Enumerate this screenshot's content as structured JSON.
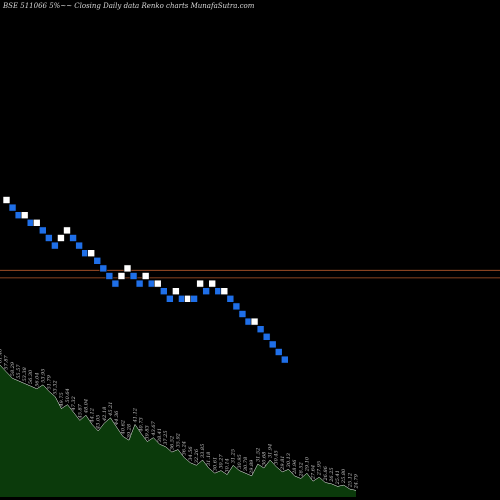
{
  "title": "BSE 511066  5%~~ Closing Daily data  Renko  charts MunafaSutra.com",
  "colors": {
    "background": "#000000",
    "up_brick": "#ffffff",
    "down_brick": "#1f6fe8",
    "brick_border": "#000000",
    "reference_line": "#b5582a",
    "volume_fill": "#0b3a0b",
    "volume_stroke": "#ffffff",
    "label_color": "#c8c8c8"
  },
  "chart_data": {
    "type": "renko",
    "title": "BSE 511066  5%~~ Closing Daily data  Renko  charts MunafaSutra.com",
    "reference_levels": [
      0.75,
      -0.25
    ],
    "bricks": [
      {
        "dir": "up",
        "level": 10
      },
      {
        "dir": "down",
        "level": 9
      },
      {
        "dir": "down",
        "level": 8
      },
      {
        "dir": "up",
        "level": 8
      },
      {
        "dir": "down",
        "level": 7
      },
      {
        "dir": "up",
        "level": 7
      },
      {
        "dir": "down",
        "level": 6
      },
      {
        "dir": "down",
        "level": 5
      },
      {
        "dir": "down",
        "level": 4
      },
      {
        "dir": "up",
        "level": 5
      },
      {
        "dir": "up",
        "level": 6
      },
      {
        "dir": "down",
        "level": 5
      },
      {
        "dir": "down",
        "level": 4
      },
      {
        "dir": "down",
        "level": 3
      },
      {
        "dir": "up",
        "level": 3
      },
      {
        "dir": "down",
        "level": 2
      },
      {
        "dir": "down",
        "level": 1
      },
      {
        "dir": "down",
        "level": 0
      },
      {
        "dir": "down",
        "level": -1
      },
      {
        "dir": "up",
        "level": 0
      },
      {
        "dir": "up",
        "level": 1
      },
      {
        "dir": "down",
        "level": 0
      },
      {
        "dir": "down",
        "level": -1
      },
      {
        "dir": "up",
        "level": 0
      },
      {
        "dir": "down",
        "level": -1
      },
      {
        "dir": "up",
        "level": -1
      },
      {
        "dir": "down",
        "level": -2
      },
      {
        "dir": "down",
        "level": -3
      },
      {
        "dir": "up",
        "level": -2
      },
      {
        "dir": "down",
        "level": -3
      },
      {
        "dir": "up",
        "level": -3
      },
      {
        "dir": "down",
        "level": -3
      },
      {
        "dir": "up",
        "level": -1
      },
      {
        "dir": "down",
        "level": -2
      },
      {
        "dir": "up",
        "level": -1
      },
      {
        "dir": "down",
        "level": -2
      },
      {
        "dir": "up",
        "level": -2
      },
      {
        "dir": "down",
        "level": -3
      },
      {
        "dir": "down",
        "level": -4
      },
      {
        "dir": "down",
        "level": -5
      },
      {
        "dir": "down",
        "level": -6
      },
      {
        "dir": "up",
        "level": -6
      },
      {
        "dir": "down",
        "level": -7
      },
      {
        "dir": "down",
        "level": -8
      },
      {
        "dir": "down",
        "level": -9
      },
      {
        "dir": "down",
        "level": -10
      },
      {
        "dir": "down",
        "level": -11
      }
    ],
    "volume": [
      {
        "value": 100,
        "label": "61.46"
      },
      {
        "value": 95,
        "label": "57.87"
      },
      {
        "value": 90,
        "label": "58.29"
      },
      {
        "value": 88,
        "label": "55.57"
      },
      {
        "value": 86,
        "label": "53.38"
      },
      {
        "value": 84,
        "label": "56.30"
      },
      {
        "value": 82,
        "label": "56.04"
      },
      {
        "value": 85,
        "label": "53.95"
      },
      {
        "value": 80,
        "label": "51.79"
      },
      {
        "value": 76,
        "label": "53.32"
      },
      {
        "value": 67,
        "label": "49.75"
      },
      {
        "value": 70,
        "label": "50.64"
      },
      {
        "value": 64,
        "label": "47.32"
      },
      {
        "value": 58,
        "label": "45.87"
      },
      {
        "value": 62,
        "label": "48.04"
      },
      {
        "value": 55,
        "label": "44.12"
      },
      {
        "value": 50,
        "label": "43.05"
      },
      {
        "value": 56,
        "label": "42.18"
      },
      {
        "value": 60,
        "label": "45.21"
      },
      {
        "value": 53,
        "label": "44.36"
      },
      {
        "value": 46,
        "label": "40.62"
      },
      {
        "value": 43,
        "label": "39.28"
      },
      {
        "value": 55,
        "label": "41.12"
      },
      {
        "value": 48,
        "label": "40.73"
      },
      {
        "value": 42,
        "label": "39.83"
      },
      {
        "value": 45,
        "label": "43.67"
      },
      {
        "value": 40,
        "label": "38.41"
      },
      {
        "value": 38,
        "label": "37.25"
      },
      {
        "value": 34,
        "label": "36.52"
      },
      {
        "value": 36,
        "label": "35.92"
      },
      {
        "value": 30,
        "label": "36.24"
      },
      {
        "value": 26,
        "label": "34.56"
      },
      {
        "value": 24,
        "label": "32.26"
      },
      {
        "value": 28,
        "label": "33.85"
      },
      {
        "value": 22,
        "label": "31.18"
      },
      {
        "value": 18,
        "label": "30.61"
      },
      {
        "value": 20,
        "label": "30.27"
      },
      {
        "value": 17,
        "label": "30.14"
      },
      {
        "value": 24,
        "label": "31.25"
      },
      {
        "value": 20,
        "label": "30.95"
      },
      {
        "value": 18,
        "label": "30.78"
      },
      {
        "value": 16,
        "label": "29.89"
      },
      {
        "value": 25,
        "label": "31.52"
      },
      {
        "value": 22,
        "label": "30.68"
      },
      {
        "value": 28,
        "label": "31.94"
      },
      {
        "value": 23,
        "label": "30.45"
      },
      {
        "value": 19,
        "label": "29.81"
      },
      {
        "value": 21,
        "label": "30.13"
      },
      {
        "value": 16,
        "label": "28.96"
      },
      {
        "value": 14,
        "label": "28.52"
      },
      {
        "value": 18,
        "label": "29.10"
      },
      {
        "value": 12,
        "label": "27.64"
      },
      {
        "value": 15,
        "label": "27.95"
      },
      {
        "value": 11,
        "label": "26.86"
      },
      {
        "value": 10,
        "label": "26.25"
      },
      {
        "value": 8,
        "label": "25.41"
      },
      {
        "value": 9,
        "label": "25.80"
      },
      {
        "value": 6,
        "label": "25.12"
      },
      {
        "value": 5,
        "label": "24.79"
      }
    ]
  }
}
